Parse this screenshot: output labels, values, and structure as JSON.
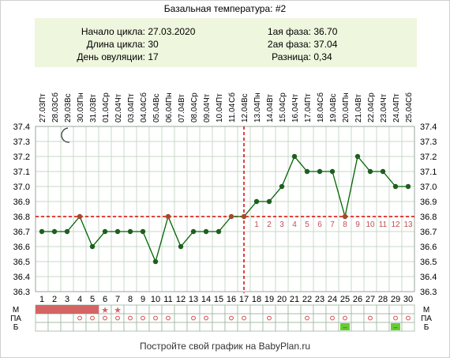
{
  "info": {
    "left": [
      {
        "label": "Начало цикла:",
        "value": "27.03.2020"
      },
      {
        "label": "Длина цикла:",
        "value": "30"
      },
      {
        "label": "День овуляции:",
        "value": "17"
      }
    ],
    "right": [
      {
        "label": "1ая фаза:",
        "value": "36.70"
      },
      {
        "label": "2ая фаза:",
        "value": "37.04"
      },
      {
        "label": "Разница:",
        "value": "0,34"
      }
    ]
  },
  "footer": "Постройте свой график на BabyPlan.ru",
  "colors": {
    "line": "#006400",
    "point": "#1e5e1e",
    "coverline": "#dd0000",
    "ovulation": "#dd0000",
    "menses": "#d56464",
    "grid": "#c8d8c8",
    "postlabel": "#c05050",
    "marker_star": "#d56464",
    "marker_circle": "#dd4444",
    "marker_green": "#66cc33"
  },
  "chart_data": {
    "type": "line",
    "title": "Базальная температура: #2",
    "ylim": [
      36.3,
      37.4
    ],
    "yticks": [
      "36.3",
      "36.4",
      "36.5",
      "36.6",
      "36.7",
      "36.8",
      "36.9",
      "37.0",
      "37.1",
      "37.2",
      "37.3",
      "37.4"
    ],
    "weekdays": [
      "Пт",
      "Сб",
      "Вс",
      "Пн",
      "Вт",
      "Ср",
      "Чт",
      "Пт",
      "Сб",
      "Вс",
      "Пн",
      "Вт",
      "Ср",
      "Чт",
      "Пт",
      "Сб",
      "Вс",
      "Пн",
      "Вт",
      "Ср",
      "Чт",
      "Пт",
      "Сб",
      "Вс",
      "Пн",
      "Вт",
      "Ср",
      "Чт",
      "Пт",
      "Сб"
    ],
    "dates": [
      "27.03",
      "28.03",
      "29.03",
      "30.03",
      "31.03",
      "01.04",
      "02.04",
      "03.04",
      "04.04",
      "05.04",
      "06.04",
      "07.04",
      "08.04",
      "09.04",
      "10.04",
      "11.04",
      "12.04",
      "13.04",
      "14.04",
      "15.04",
      "16.04",
      "17.04",
      "18.04",
      "19.04",
      "20.04",
      "21.04",
      "22.04",
      "23.04",
      "24.04",
      "25.04"
    ],
    "days": [
      "1",
      "2",
      "3",
      "4",
      "5",
      "6",
      "7",
      "8",
      "9",
      "10",
      "11",
      "12",
      "13",
      "14",
      "15",
      "16",
      "17",
      "18",
      "19",
      "20",
      "21",
      "22",
      "23",
      "24",
      "25",
      "26",
      "27",
      "28",
      "29",
      "30"
    ],
    "values": [
      36.7,
      36.7,
      36.7,
      36.8,
      36.6,
      36.7,
      36.7,
      36.7,
      36.7,
      36.5,
      36.8,
      36.6,
      36.7,
      36.7,
      36.7,
      36.8,
      36.8,
      36.9,
      36.9,
      37.0,
      37.2,
      37.1,
      37.1,
      37.1,
      36.8,
      37.2,
      37.1,
      37.1,
      37.0,
      37.0
    ],
    "coverline": 36.8,
    "ovulation_day": 17,
    "post_ovulation_labels": [
      "1",
      "2",
      "3",
      "4",
      "5",
      "6",
      "7",
      "8",
      "9",
      "10",
      "11",
      "12",
      "13"
    ],
    "row_labels": [
      "М",
      "ПА",
      "Б"
    ],
    "menses_days": [
      1,
      2,
      3,
      4,
      5
    ],
    "star_days": [
      6,
      7
    ],
    "intercourse_days": [
      4,
      5,
      6,
      7,
      8,
      9,
      10,
      11,
      13,
      14,
      16,
      17,
      19,
      22,
      24,
      25,
      27,
      29,
      30
    ],
    "test_days": [
      25,
      29
    ],
    "test_mark": "–",
    "star_mark": "★"
  }
}
